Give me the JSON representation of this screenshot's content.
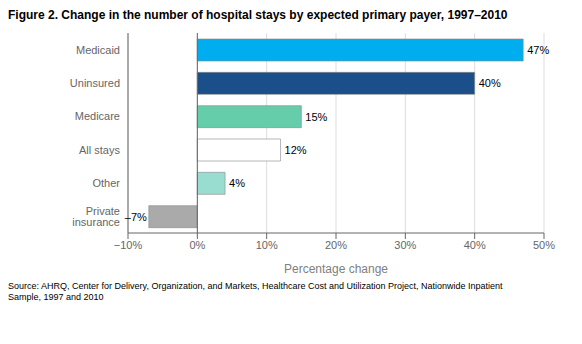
{
  "chart_data": {
    "type": "bar",
    "orientation": "horizontal",
    "title": "Figure 2. Change in the number of hospital stays by expected primary payer, 1997–2010",
    "categories": [
      "Medicaid",
      "Uninsured",
      "Medicare",
      "All stays",
      "Other",
      "Private insurance"
    ],
    "values": [
      47,
      40,
      15,
      12,
      4,
      -7
    ],
    "value_labels": [
      "47%",
      "40%",
      "15%",
      "12%",
      "4%",
      "–7%"
    ],
    "data_labels": true,
    "colors": [
      "#00AEEF",
      "#1B4F8A",
      "#66CDAA",
      "#FFFFFF",
      "#99DDD0",
      "#AAAAAA"
    ],
    "xlabel": "Percentage change",
    "xlim": [
      -10,
      50
    ],
    "xticks": [
      {
        "value": -10,
        "label": "−10%"
      },
      {
        "value": 0,
        "label": "0%"
      },
      {
        "value": 10,
        "label": "10%"
      },
      {
        "value": 20,
        "label": "20%"
      },
      {
        "value": 30,
        "label": "30%"
      },
      {
        "value": 40,
        "label": "40%"
      },
      {
        "value": 50,
        "label": "50%"
      }
    ],
    "grid": true,
    "annotations": [
      "Source: AHRQ, Center for Delivery, Organization, and Markets, Healthcare Cost and Utilization Project, Nationwide Inpatient\nSample, 1997 and 2010"
    ]
  }
}
